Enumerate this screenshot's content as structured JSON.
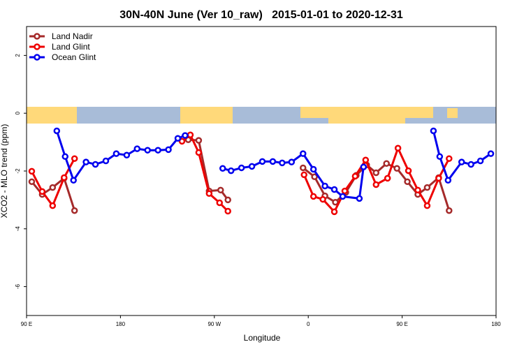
{
  "chart_data": {
    "type": "line",
    "title": "30N-40N June (Ver 10_raw)   2015-01-01 to 2020-12-31",
    "x_label": "Longitude",
    "y_label": "XCO2 - MLO trend (ppm)",
    "xlim": [
      90,
      540
    ],
    "ylim": [
      -7,
      3
    ],
    "xticks": [
      {
        "value": 90,
        "label": "90 E"
      },
      {
        "value": 180,
        "label": "180"
      },
      {
        "value": 270,
        "label": "90 W"
      },
      {
        "value": 360,
        "label": "0"
      },
      {
        "value": 450,
        "label": "90 E"
      },
      {
        "value": 540,
        "label": "180"
      }
    ],
    "yticks": [
      2,
      0,
      -2,
      -4,
      -6
    ],
    "legend": "top-left",
    "series": [
      {
        "name": "Land Nadir",
        "color": "#a52a2a",
        "x": [
          95,
          105,
          115,
          126,
          136,
          null,
          245,
          255,
          265,
          276,
          283,
          null,
          355,
          366,
          376,
          386,
          396,
          406,
          416,
          425,
          435,
          445,
          455,
          465,
          474,
          485,
          495
        ],
        "values": [
          -2.37,
          -2.81,
          -2.57,
          -2.25,
          -3.37,
          null,
          -0.92,
          -0.94,
          -2.69,
          -2.66,
          -3.0,
          null,
          -1.89,
          -2.2,
          -2.86,
          -3.08,
          -2.74,
          -2.15,
          -1.79,
          -2.06,
          -1.74,
          -1.91,
          -2.37,
          -2.81,
          -2.57,
          -2.23,
          -3.37
        ]
      },
      {
        "name": "Land Glint",
        "color": "#ee0000",
        "x": [
          95,
          105,
          115,
          126,
          136,
          null,
          239,
          247,
          255,
          265,
          275,
          283,
          null,
          356,
          365,
          374,
          385,
          395,
          405,
          415,
          425,
          436,
          446,
          456,
          465,
          474,
          485,
          495
        ],
        "values": [
          -2.01,
          -2.71,
          -3.2,
          -2.23,
          -1.57,
          null,
          -0.97,
          -0.75,
          -1.36,
          -2.78,
          -3.1,
          -3.39,
          null,
          -2.13,
          -2.88,
          -2.98,
          -3.41,
          -2.69,
          -2.18,
          -1.62,
          -2.47,
          -2.25,
          -1.21,
          -1.99,
          -2.66,
          -3.2,
          -2.25,
          -1.57
        ]
      },
      {
        "name": "Ocean Glint",
        "color": "#0000ee",
        "x": [
          119,
          127,
          135,
          147,
          156,
          166,
          176,
          186,
          196,
          206,
          216,
          226,
          235,
          242,
          null,
          278,
          286,
          296,
          306,
          316,
          326,
          335,
          344,
          355,
          365,
          376,
          385,
          393,
          409,
          413,
          null,
          480,
          486,
          494,
          507,
          516,
          525,
          535
        ],
        "values": [
          -0.61,
          -1.5,
          -2.32,
          -1.69,
          -1.77,
          -1.65,
          -1.4,
          -1.45,
          -1.23,
          -1.28,
          -1.28,
          -1.26,
          -0.87,
          -0.77,
          null,
          -1.91,
          -1.99,
          -1.89,
          -1.84,
          -1.67,
          -1.67,
          -1.72,
          -1.69,
          -1.4,
          -1.94,
          -2.52,
          -2.64,
          -2.88,
          -2.95,
          -1.86,
          null,
          -0.61,
          -1.5,
          -2.32,
          -1.69,
          -1.77,
          -1.65,
          -1.4
        ]
      }
    ]
  }
}
